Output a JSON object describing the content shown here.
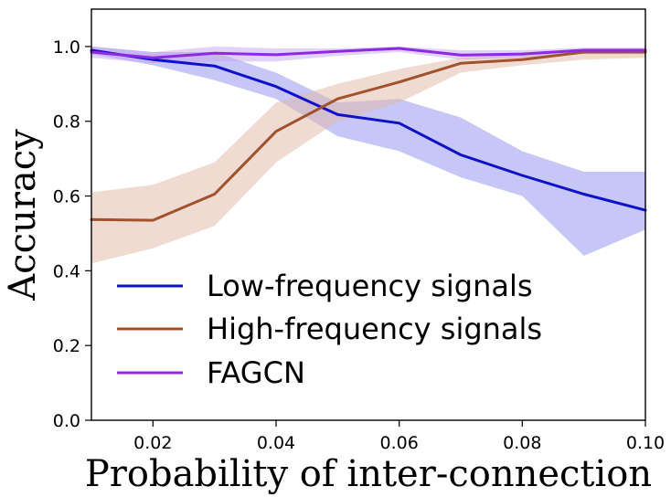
{
  "chart_data": {
    "type": "line",
    "title": "",
    "xlabel": "Probability of inter-connection",
    "ylabel": "Accuracy",
    "xlim": [
      0.01,
      0.1
    ],
    "ylim": [
      0.0,
      1.1
    ],
    "xticks": [
      0.02,
      0.04,
      0.06,
      0.08,
      0.1
    ],
    "xtick_labels": [
      "0.02",
      "0.04",
      "0.06",
      "0.08",
      "0.10"
    ],
    "yticks": [
      0.0,
      0.2,
      0.4,
      0.6,
      0.8,
      1.0
    ],
    "ytick_labels": [
      "0.0",
      "0.2",
      "0.4",
      "0.6",
      "0.8",
      "1.0"
    ],
    "grid": false,
    "legend_position": "lower-left",
    "x": [
      0.01,
      0.02,
      0.03,
      0.04,
      0.05,
      0.06,
      0.07,
      0.08,
      0.09,
      0.1
    ],
    "series": [
      {
        "name": "Low-frequency signals",
        "color": "#1010c8",
        "band_color": "#8f8ff0",
        "values": [
          0.99,
          0.965,
          0.948,
          0.893,
          0.818,
          0.795,
          0.71,
          0.655,
          0.605,
          0.562
        ],
        "lower": [
          0.98,
          0.95,
          0.91,
          0.86,
          0.76,
          0.72,
          0.65,
          0.6,
          0.44,
          0.51
        ],
        "upper": [
          1.0,
          0.985,
          0.985,
          0.93,
          0.85,
          0.86,
          0.81,
          0.72,
          0.665,
          0.665
        ]
      },
      {
        "name": "High-frequency signals",
        "color": "#a0522d",
        "band_color": "#e0b8a4",
        "values": [
          0.537,
          0.535,
          0.605,
          0.773,
          0.86,
          0.905,
          0.955,
          0.965,
          0.985,
          0.985
        ],
        "lower": [
          0.42,
          0.46,
          0.52,
          0.69,
          0.8,
          0.85,
          0.93,
          0.95,
          0.965,
          0.97
        ],
        "upper": [
          0.61,
          0.63,
          0.69,
          0.85,
          0.9,
          0.94,
          0.97,
          0.98,
          0.995,
          0.995
        ]
      },
      {
        "name": "FAGCN",
        "color": "#8a2be2",
        "band_color": "#c9a3f0",
        "values": [
          0.985,
          0.97,
          0.982,
          0.978,
          0.987,
          0.995,
          0.977,
          0.98,
          0.99,
          0.99
        ],
        "lower": [
          0.97,
          0.955,
          0.96,
          0.96,
          0.975,
          0.985,
          0.965,
          0.97,
          0.98,
          0.98
        ],
        "upper": [
          1.0,
          0.985,
          1.0,
          0.995,
          0.995,
          1.0,
          0.99,
          0.99,
          0.997,
          0.997
        ]
      }
    ]
  }
}
